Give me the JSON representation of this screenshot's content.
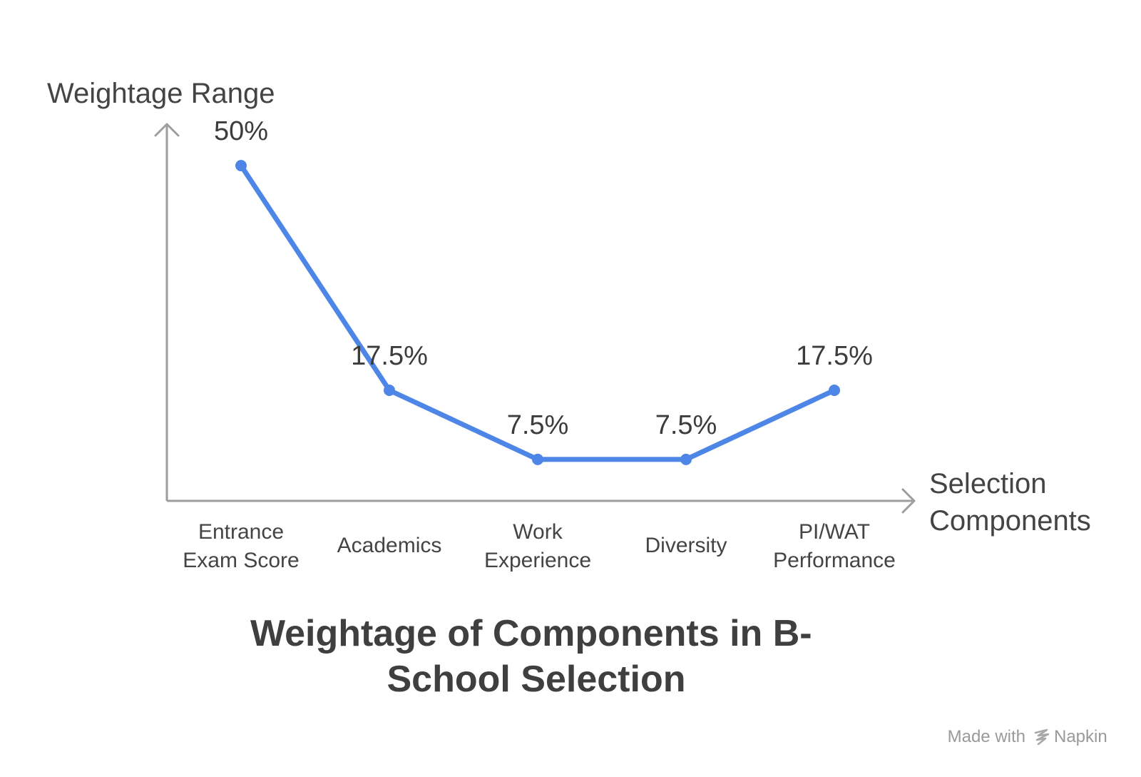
{
  "chart_data": {
    "type": "line",
    "title": [
      "Weightage of Components in B-",
      "School Selection"
    ],
    "ylabel": "Weightage Range",
    "xlabel": [
      "Selection",
      "Components"
    ],
    "categories": [
      [
        "Entrance",
        "Exam Score"
      ],
      [
        "Academics"
      ],
      [
        "Work",
        "Experience"
      ],
      [
        "Diversity"
      ],
      [
        "PI/WAT",
        "Performance"
      ]
    ],
    "values": [
      50,
      17.5,
      7.5,
      7.5,
      17.5
    ],
    "value_labels": [
      "50%",
      "17.5%",
      "7.5%",
      "7.5%",
      "17.5%"
    ],
    "ylim": [
      1.5,
      56
    ],
    "grid": false,
    "legend": "none"
  },
  "colors": {
    "line": "#4d86e6",
    "axis": "#9e9e9e"
  },
  "credit": {
    "prefix": "Made with",
    "brand": "Napkin"
  }
}
